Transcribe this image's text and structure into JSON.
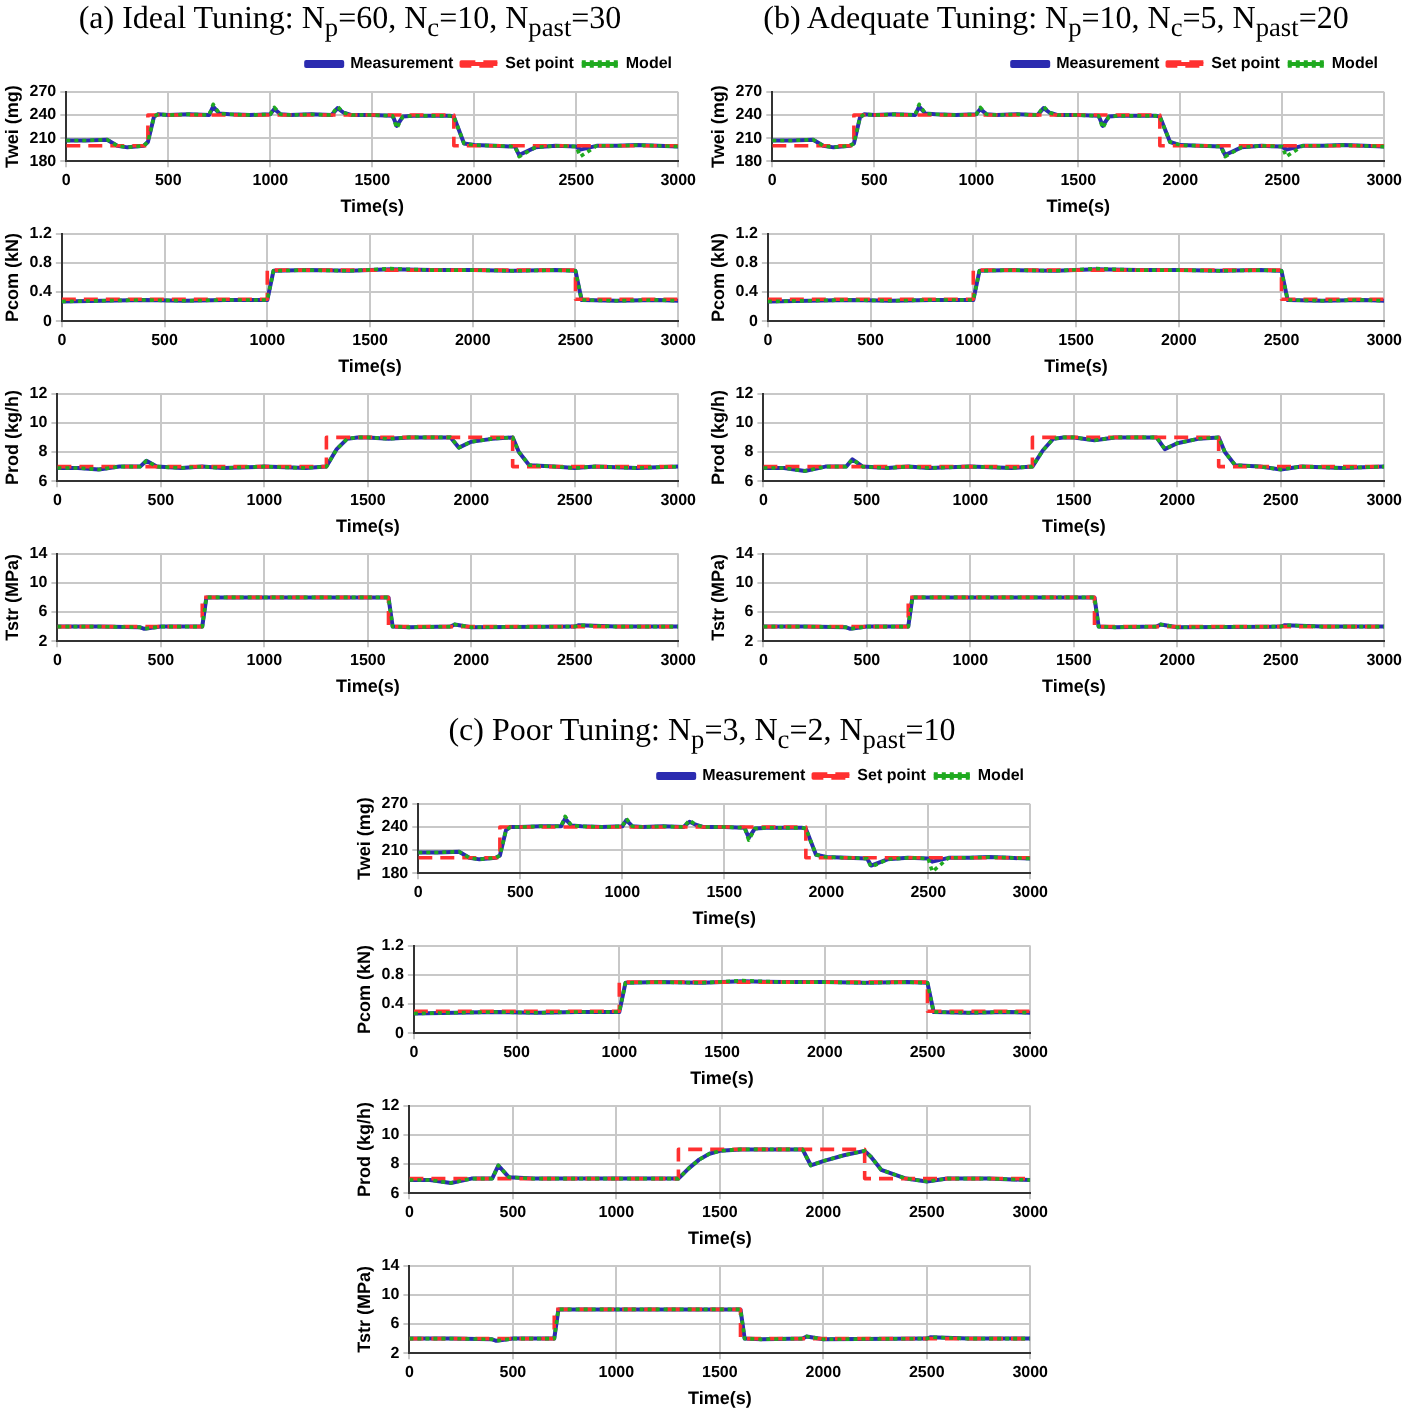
{
  "chart_data": [
    {
      "type": "line",
      "title": "(a) Ideal Tuning: N$_{p}$=60, N$_{c}$=10, N$_{past}$=30",
      "xlabel": "Time(s)",
      "ylabel": "Twei (mg)",
      "xlim": [
        0,
        3000
      ],
      "xticks": [
        0,
        500,
        1000,
        1500,
        2000,
        2500,
        3000
      ],
      "ylim": [
        180,
        270
      ],
      "yticks": [
        180,
        210,
        240,
        270
      ],
      "grid": true,
      "legend": "top right",
      "marker": "none",
      "series": [
        {
          "name": "Measurement",
          "color": "#2b2bb0",
          "line_style": "solid",
          "x": [
            0,
            100,
            200,
            250,
            300,
            380,
            400,
            430,
            450,
            500,
            600,
            700,
            720,
            750,
            800,
            900,
            1000,
            1020,
            1050,
            1100,
            1200,
            1300,
            1330,
            1360,
            1400,
            1500,
            1600,
            1620,
            1650,
            1700,
            1800,
            1880,
            1900,
            1950,
            2000,
            2100,
            2200,
            2220,
            2300,
            2400,
            2500,
            2520,
            2600,
            2700,
            2800,
            2900,
            3000
          ],
          "values": [
            207,
            207,
            208,
            200,
            198,
            200,
            205,
            238,
            241,
            240,
            241,
            240,
            251,
            242,
            241,
            240,
            241,
            248,
            241,
            240,
            241,
            240,
            249,
            243,
            240,
            240,
            239,
            226,
            238,
            239,
            239,
            239,
            238,
            203,
            201,
            200,
            199,
            188,
            198,
            200,
            199,
            195,
            200,
            200,
            201,
            200,
            199
          ]
        },
        {
          "name": "Set point",
          "color": "#ff3030",
          "line_style": "dashed",
          "x": [
            0,
            400,
            400,
            1900,
            1900,
            3000
          ],
          "values": [
            200,
            200,
            240,
            240,
            200,
            200
          ]
        },
        {
          "name": "Model",
          "color": "#1faa1f",
          "line_style": "dotted",
          "x": [
            0,
            100,
            200,
            250,
            300,
            380,
            400,
            430,
            450,
            500,
            600,
            700,
            720,
            750,
            800,
            900,
            1000,
            1020,
            1050,
            1100,
            1200,
            1300,
            1330,
            1360,
            1400,
            1500,
            1600,
            1620,
            1650,
            1700,
            1800,
            1880,
            1900,
            1950,
            2000,
            2100,
            2200,
            2220,
            2300,
            2400,
            2500,
            2520,
            2600,
            2700,
            2800,
            2900,
            3000
          ],
          "values": [
            207,
            207,
            208,
            200,
            198,
            200,
            205,
            238,
            241,
            240,
            241,
            240,
            254,
            242,
            241,
            240,
            241,
            250,
            241,
            240,
            241,
            240,
            251,
            243,
            240,
            240,
            239,
            223,
            238,
            239,
            239,
            239,
            238,
            203,
            201,
            200,
            199,
            186,
            198,
            200,
            199,
            186,
            200,
            200,
            201,
            200,
            199
          ]
        }
      ]
    },
    {
      "type": "line",
      "xlabel": "Time(s)",
      "ylabel": "Pcom (kN)",
      "xlim": [
        0,
        3000
      ],
      "xticks": [
        0,
        500,
        1000,
        1500,
        2000,
        2500,
        3000
      ],
      "ylim": [
        0,
        1.2
      ],
      "yticks": [
        0,
        0.4,
        0.8,
        1.2
      ],
      "grid": true,
      "marker": "none",
      "series": [
        {
          "color": "#2b2bb0",
          "line_style": "solid",
          "x": [
            0,
            200,
            400,
            600,
            800,
            1000,
            1030,
            1200,
            1400,
            1600,
            1800,
            2000,
            2200,
            2400,
            2500,
            2530,
            2700,
            2900,
            3000
          ],
          "values": [
            0.27,
            0.28,
            0.29,
            0.28,
            0.29,
            0.29,
            0.69,
            0.7,
            0.69,
            0.71,
            0.7,
            0.7,
            0.69,
            0.7,
            0.69,
            0.29,
            0.28,
            0.29,
            0.28
          ]
        },
        {
          "color": "#ff3030",
          "line_style": "dashed",
          "x": [
            0,
            1000,
            1000,
            2500,
            2500,
            3000
          ],
          "values": [
            0.3,
            0.3,
            0.7,
            0.7,
            0.3,
            0.3
          ]
        },
        {
          "color": "#1faa1f",
          "line_style": "dotted",
          "x": [
            0,
            200,
            400,
            600,
            800,
            1000,
            1030,
            1200,
            1400,
            1600,
            1800,
            2000,
            2200,
            2400,
            2500,
            2530,
            2700,
            2900,
            3000
          ],
          "values": [
            0.27,
            0.28,
            0.29,
            0.28,
            0.29,
            0.29,
            0.69,
            0.7,
            0.69,
            0.72,
            0.7,
            0.7,
            0.69,
            0.7,
            0.69,
            0.29,
            0.28,
            0.29,
            0.28
          ]
        }
      ]
    },
    {
      "type": "line",
      "xlabel": "Time(s)",
      "ylabel": "Prod (kg/h)",
      "xlim": [
        0,
        3000
      ],
      "xticks": [
        0,
        500,
        1000,
        1500,
        2000,
        2500,
        3000
      ],
      "ylim": [
        6,
        12
      ],
      "yticks": [
        6,
        8,
        10,
        12
      ],
      "grid": true,
      "marker": "none",
      "series": [
        {
          "color": "#2b2bb0",
          "line_style": "solid",
          "x": [
            0,
            100,
            200,
            300,
            400,
            430,
            480,
            600,
            700,
            800,
            1000,
            1200,
            1300,
            1350,
            1400,
            1450,
            1500,
            1600,
            1700,
            1800,
            1900,
            1940,
            2000,
            2100,
            2200,
            2230,
            2280,
            2400,
            2500,
            2600,
            2800,
            3000
          ],
          "values": [
            6.9,
            6.9,
            6.8,
            7.0,
            7.0,
            7.4,
            7.0,
            6.9,
            7.0,
            6.9,
            7.0,
            6.9,
            7.0,
            8.2,
            8.9,
            9.0,
            9.0,
            8.9,
            9.0,
            9.0,
            9.0,
            8.3,
            8.7,
            8.9,
            9.0,
            8.0,
            7.1,
            7.0,
            6.9,
            7.0,
            6.9,
            7.0
          ]
        },
        {
          "color": "#ff3030",
          "line_style": "dashed",
          "x": [
            0,
            1300,
            1300,
            2200,
            2200,
            3000
          ],
          "values": [
            7,
            7,
            9,
            9,
            7,
            7
          ]
        },
        {
          "color": "#1faa1f",
          "line_style": "dotted",
          "x": [
            0,
            100,
            200,
            300,
            400,
            430,
            480,
            600,
            700,
            800,
            1000,
            1200,
            1300,
            1350,
            1400,
            1450,
            1500,
            1600,
            1700,
            1800,
            1900,
            1940,
            2000,
            2100,
            2200,
            2230,
            2280,
            2400,
            2500,
            2600,
            2800,
            3000
          ],
          "values": [
            6.9,
            6.9,
            6.8,
            7.0,
            7.0,
            7.4,
            7.0,
            6.9,
            7.0,
            6.9,
            7.0,
            6.9,
            7.0,
            8.2,
            8.9,
            9.0,
            9.0,
            8.9,
            9.0,
            9.0,
            9.0,
            8.3,
            8.7,
            8.9,
            9.0,
            8.0,
            7.1,
            7.0,
            6.9,
            7.0,
            6.9,
            7.0
          ]
        }
      ]
    },
    {
      "type": "line",
      "xlabel": "Time(s)",
      "ylabel": "Tstr (MPa)",
      "xlim": [
        0,
        3000
      ],
      "xticks": [
        0,
        500,
        1000,
        1500,
        2000,
        2500,
        3000
      ],
      "ylim": [
        2,
        14
      ],
      "yticks": [
        2,
        6,
        10,
        14
      ],
      "grid": true,
      "marker": "none",
      "series": [
        {
          "color": "#2b2bb0",
          "line_style": "solid",
          "x": [
            0,
            200,
            400,
            420,
            500,
            700,
            720,
            800,
            1000,
            1200,
            1400,
            1600,
            1620,
            1700,
            1900,
            1920,
            2000,
            2500,
            2520,
            2700,
            3000
          ],
          "values": [
            4,
            4,
            3.9,
            3.7,
            4,
            4,
            8,
            8,
            8,
            8,
            8,
            8,
            4,
            3.9,
            4,
            4.3,
            3.9,
            4,
            4.2,
            4,
            4
          ]
        },
        {
          "color": "#ff3030",
          "line_style": "dashed",
          "x": [
            0,
            700,
            700,
            1600,
            1600,
            3000
          ],
          "values": [
            4,
            4,
            8,
            8,
            4,
            4
          ]
        },
        {
          "color": "#1faa1f",
          "line_style": "dotted",
          "x": [
            0,
            200,
            400,
            420,
            500,
            700,
            720,
            800,
            1000,
            1200,
            1400,
            1600,
            1620,
            1700,
            1900,
            1920,
            2000,
            2500,
            2520,
            2700,
            3000
          ],
          "values": [
            4,
            4,
            3.9,
            3.7,
            4,
            4,
            8,
            8,
            8,
            8,
            8,
            8,
            4,
            3.9,
            4,
            4.3,
            3.9,
            4,
            4.2,
            4,
            4
          ]
        }
      ]
    },
    {
      "type": "line",
      "title": "(b) Adequate Tuning: N$_{p}$=10, N$_{c}$=5, N$_{past}$=20",
      "xlabel": "Time(s)",
      "ylabel": "Twei (mg)",
      "xlim": [
        0,
        3000
      ],
      "xticks": [
        0,
        500,
        1000,
        1500,
        2000,
        2500,
        3000
      ],
      "ylim": [
        180,
        270
      ],
      "yticks": [
        180,
        210,
        240,
        270
      ],
      "grid": true,
      "legend": "top right",
      "marker": "none",
      "series": [
        {
          "name": "Measurement",
          "color": "#2b2bb0",
          "line_style": "solid",
          "x": [
            0,
            100,
            200,
            250,
            300,
            380,
            400,
            430,
            450,
            500,
            600,
            700,
            720,
            750,
            800,
            900,
            1000,
            1020,
            1050,
            1100,
            1200,
            1300,
            1330,
            1360,
            1400,
            1500,
            1600,
            1620,
            1650,
            1700,
            1800,
            1880,
            1900,
            1950,
            2000,
            2100,
            2200,
            2220,
            2300,
            2400,
            2500,
            2520,
            2600,
            2700,
            2800,
            2900,
            3000
          ],
          "values": [
            207,
            207,
            208,
            200,
            198,
            200,
            203,
            237,
            241,
            240,
            241,
            240,
            251,
            242,
            241,
            240,
            241,
            248,
            241,
            240,
            241,
            240,
            249,
            243,
            240,
            240,
            239,
            226,
            238,
            239,
            239,
            239,
            238,
            205,
            201,
            200,
            199,
            188,
            198,
            200,
            199,
            195,
            200,
            200,
            201,
            200,
            199
          ]
        },
        {
          "name": "Set point",
          "color": "#ff3030",
          "line_style": "dashed",
          "x": [
            0,
            400,
            400,
            1900,
            1900,
            3000
          ],
          "values": [
            200,
            200,
            240,
            240,
            200,
            200
          ]
        },
        {
          "name": "Model",
          "color": "#1faa1f",
          "line_style": "dotted",
          "x": [
            0,
            100,
            200,
            250,
            300,
            380,
            400,
            430,
            450,
            500,
            600,
            700,
            720,
            750,
            800,
            900,
            1000,
            1020,
            1050,
            1100,
            1200,
            1300,
            1330,
            1360,
            1400,
            1500,
            1600,
            1620,
            1650,
            1700,
            1800,
            1880,
            1900,
            1950,
            2000,
            2100,
            2200,
            2220,
            2300,
            2400,
            2500,
            2520,
            2600,
            2700,
            2800,
            2900,
            3000
          ],
          "values": [
            207,
            207,
            208,
            200,
            198,
            200,
            203,
            237,
            241,
            240,
            241,
            240,
            254,
            242,
            241,
            240,
            241,
            250,
            241,
            240,
            241,
            240,
            251,
            243,
            240,
            240,
            239,
            223,
            238,
            239,
            239,
            239,
            238,
            205,
            201,
            200,
            199,
            186,
            198,
            200,
            199,
            186,
            200,
            200,
            201,
            200,
            199
          ]
        }
      ]
    },
    {
      "type": "line",
      "xlabel": "Time(s)",
      "ylabel": "Pcom (kN)",
      "xlim": [
        0,
        3000
      ],
      "xticks": [
        0,
        500,
        1000,
        1500,
        2000,
        2500,
        3000
      ],
      "ylim": [
        0,
        1.2
      ],
      "yticks": [
        0,
        0.4,
        0.8,
        1.2
      ],
      "grid": true,
      "marker": "none",
      "series": [
        {
          "color": "#2b2bb0",
          "line_style": "solid",
          "x": [
            0,
            200,
            400,
            600,
            800,
            1000,
            1030,
            1200,
            1400,
            1600,
            1800,
            2000,
            2200,
            2400,
            2500,
            2530,
            2700,
            2900,
            3000
          ],
          "values": [
            0.27,
            0.28,
            0.29,
            0.28,
            0.29,
            0.29,
            0.69,
            0.7,
            0.69,
            0.71,
            0.7,
            0.7,
            0.69,
            0.7,
            0.69,
            0.29,
            0.28,
            0.29,
            0.28
          ]
        },
        {
          "color": "#ff3030",
          "line_style": "dashed",
          "x": [
            0,
            1000,
            1000,
            2500,
            2500,
            3000
          ],
          "values": [
            0.3,
            0.3,
            0.7,
            0.7,
            0.3,
            0.3
          ]
        },
        {
          "color": "#1faa1f",
          "line_style": "dotted",
          "x": [
            0,
            200,
            400,
            600,
            800,
            1000,
            1030,
            1200,
            1400,
            1600,
            1800,
            2000,
            2200,
            2400,
            2500,
            2530,
            2700,
            2900,
            3000
          ],
          "values": [
            0.27,
            0.28,
            0.29,
            0.28,
            0.29,
            0.29,
            0.69,
            0.7,
            0.69,
            0.72,
            0.7,
            0.7,
            0.69,
            0.7,
            0.69,
            0.29,
            0.28,
            0.29,
            0.28
          ]
        }
      ]
    },
    {
      "type": "line",
      "xlabel": "Time(s)",
      "ylabel": "Prod (kg/h)",
      "xlim": [
        0,
        3000
      ],
      "xticks": [
        0,
        500,
        1000,
        1500,
        2000,
        2500,
        3000
      ],
      "ylim": [
        6,
        12
      ],
      "yticks": [
        6,
        8,
        10,
        12
      ],
      "grid": true,
      "marker": "none",
      "series": [
        {
          "color": "#2b2bb0",
          "line_style": "solid",
          "x": [
            0,
            100,
            200,
            300,
            400,
            430,
            480,
            600,
            700,
            800,
            1000,
            1200,
            1300,
            1350,
            1400,
            1450,
            1500,
            1600,
            1700,
            1800,
            1900,
            1940,
            2000,
            2100,
            2200,
            2230,
            2280,
            2400,
            2500,
            2600,
            2800,
            3000
          ],
          "values": [
            6.9,
            6.9,
            6.7,
            7.0,
            7.0,
            7.5,
            7.0,
            6.9,
            7.0,
            6.9,
            7.0,
            6.9,
            7.0,
            8.1,
            8.9,
            9.0,
            9.0,
            8.8,
            9.0,
            9.0,
            9.0,
            8.2,
            8.6,
            8.9,
            9.0,
            8.0,
            7.1,
            7.0,
            6.8,
            7.0,
            6.9,
            7.0
          ]
        },
        {
          "color": "#ff3030",
          "line_style": "dashed",
          "x": [
            0,
            1300,
            1300,
            2200,
            2200,
            3000
          ],
          "values": [
            7,
            7,
            9,
            9,
            7,
            7
          ]
        },
        {
          "color": "#1faa1f",
          "line_style": "dotted",
          "x": [
            0,
            100,
            200,
            300,
            400,
            430,
            480,
            600,
            700,
            800,
            1000,
            1200,
            1300,
            1350,
            1400,
            1450,
            1500,
            1600,
            1700,
            1800,
            1900,
            1940,
            2000,
            2100,
            2200,
            2230,
            2280,
            2400,
            2500,
            2600,
            2800,
            3000
          ],
          "values": [
            6.9,
            6.9,
            6.7,
            7.0,
            7.0,
            7.5,
            7.0,
            6.9,
            7.0,
            6.9,
            7.0,
            6.9,
            7.0,
            8.1,
            8.9,
            9.0,
            9.0,
            8.8,
            9.0,
            9.0,
            9.0,
            8.2,
            8.6,
            8.9,
            9.0,
            8.0,
            7.1,
            7.0,
            6.8,
            7.0,
            6.9,
            7.0
          ]
        }
      ]
    },
    {
      "type": "line",
      "xlabel": "Time(s)",
      "ylabel": "Tstr (MPa)",
      "xlim": [
        0,
        3000
      ],
      "xticks": [
        0,
        500,
        1000,
        1500,
        2000,
        2500,
        3000
      ],
      "ylim": [
        2,
        14
      ],
      "yticks": [
        2,
        6,
        10,
        14
      ],
      "grid": true,
      "marker": "none",
      "series": [
        {
          "color": "#2b2bb0",
          "line_style": "solid",
          "x": [
            0,
            200,
            400,
            420,
            500,
            700,
            720,
            800,
            1000,
            1200,
            1400,
            1600,
            1620,
            1700,
            1900,
            1920,
            2000,
            2500,
            2520,
            2700,
            3000
          ],
          "values": [
            4,
            4,
            3.9,
            3.7,
            4,
            4,
            8,
            8,
            8,
            8,
            8,
            8,
            4,
            3.9,
            4,
            4.3,
            3.9,
            4,
            4.2,
            4,
            4
          ]
        },
        {
          "color": "#ff3030",
          "line_style": "dashed",
          "x": [
            0,
            700,
            700,
            1600,
            1600,
            3000
          ],
          "values": [
            4,
            4,
            8,
            8,
            4,
            4
          ]
        },
        {
          "color": "#1faa1f",
          "line_style": "dotted",
          "x": [
            0,
            200,
            400,
            420,
            500,
            700,
            720,
            800,
            1000,
            1200,
            1400,
            1600,
            1620,
            1700,
            1900,
            1920,
            2000,
            2500,
            2520,
            2700,
            3000
          ],
          "values": [
            4,
            4,
            3.9,
            3.7,
            4,
            4,
            8,
            8,
            8,
            8,
            8,
            8,
            4,
            3.9,
            4,
            4.3,
            3.9,
            4,
            4.2,
            4,
            4
          ]
        }
      ]
    },
    {
      "type": "line",
      "title": "(c) Poor Tuning: N$_{p}$=3, N$_{c}$=2, N$_{past}$=10",
      "xlabel": "Time(s)",
      "ylabel": "Twei (mg)",
      "xlim": [
        0,
        3000
      ],
      "xticks": [
        0,
        500,
        1000,
        1500,
        2000,
        2500,
        3000
      ],
      "ylim": [
        180,
        270
      ],
      "yticks": [
        180,
        210,
        240,
        270
      ],
      "grid": true,
      "legend": "top right",
      "marker": "none",
      "series": [
        {
          "name": "Measurement",
          "color": "#2b2bb0",
          "line_style": "solid",
          "x": [
            0,
            100,
            200,
            250,
            300,
            380,
            400,
            430,
            450,
            500,
            600,
            700,
            720,
            750,
            800,
            900,
            1000,
            1020,
            1050,
            1100,
            1200,
            1300,
            1330,
            1360,
            1400,
            1500,
            1600,
            1620,
            1650,
            1700,
            1800,
            1880,
            1900,
            1950,
            2000,
            2100,
            2200,
            2220,
            2300,
            2400,
            2500,
            2520,
            2600,
            2700,
            2800,
            2900,
            3000
          ],
          "values": [
            207,
            207,
            208,
            200,
            198,
            200,
            203,
            236,
            240,
            240,
            241,
            241,
            251,
            242,
            241,
            240,
            241,
            249,
            241,
            240,
            241,
            240,
            247,
            243,
            240,
            240,
            239,
            226,
            238,
            239,
            239,
            239,
            238,
            204,
            201,
            200,
            199,
            190,
            198,
            200,
            199,
            195,
            200,
            200,
            201,
            200,
            199
          ]
        },
        {
          "name": "Set point",
          "color": "#ff3030",
          "line_style": "dashed",
          "x": [
            0,
            400,
            400,
            1900,
            1900,
            3000
          ],
          "values": [
            200,
            200,
            240,
            240,
            200,
            200
          ]
        },
        {
          "name": "Model",
          "color": "#1faa1f",
          "line_style": "dotted",
          "x": [
            0,
            100,
            200,
            250,
            300,
            380,
            400,
            430,
            450,
            500,
            600,
            700,
            720,
            750,
            800,
            900,
            1000,
            1020,
            1050,
            1100,
            1200,
            1300,
            1330,
            1360,
            1400,
            1500,
            1600,
            1620,
            1650,
            1700,
            1800,
            1880,
            1900,
            1950,
            2000,
            2100,
            2200,
            2220,
            2300,
            2400,
            2500,
            2520,
            2600,
            2700,
            2800,
            2900,
            3000
          ],
          "values": [
            207,
            207,
            208,
            200,
            198,
            200,
            203,
            236,
            240,
            240,
            241,
            241,
            254,
            242,
            241,
            240,
            241,
            251,
            241,
            240,
            241,
            240,
            249,
            243,
            240,
            240,
            239,
            223,
            238,
            239,
            239,
            239,
            238,
            204,
            201,
            200,
            199,
            188,
            198,
            200,
            199,
            182,
            200,
            200,
            201,
            200,
            199
          ]
        }
      ]
    },
    {
      "type": "line",
      "xlabel": "Time(s)",
      "ylabel": "Pcom (kN)",
      "xlim": [
        0,
        3000
      ],
      "xticks": [
        0,
        500,
        1000,
        1500,
        2000,
        2500,
        3000
      ],
      "ylim": [
        0,
        1.2
      ],
      "yticks": [
        0,
        0.4,
        0.8,
        1.2
      ],
      "grid": true,
      "marker": "none",
      "series": [
        {
          "color": "#2b2bb0",
          "line_style": "solid",
          "x": [
            0,
            200,
            400,
            600,
            800,
            1000,
            1030,
            1200,
            1400,
            1600,
            1800,
            2000,
            2200,
            2400,
            2500,
            2530,
            2700,
            2900,
            3000
          ],
          "values": [
            0.27,
            0.28,
            0.29,
            0.28,
            0.29,
            0.29,
            0.69,
            0.7,
            0.69,
            0.71,
            0.7,
            0.7,
            0.69,
            0.7,
            0.69,
            0.29,
            0.28,
            0.29,
            0.28
          ]
        },
        {
          "color": "#ff3030",
          "line_style": "dashed",
          "x": [
            0,
            1000,
            1000,
            2500,
            2500,
            3000
          ],
          "values": [
            0.3,
            0.3,
            0.7,
            0.7,
            0.3,
            0.3
          ]
        },
        {
          "color": "#1faa1f",
          "line_style": "dotted",
          "x": [
            0,
            200,
            400,
            600,
            800,
            1000,
            1030,
            1200,
            1400,
            1600,
            1800,
            2000,
            2200,
            2400,
            2500,
            2530,
            2700,
            2900,
            3000
          ],
          "values": [
            0.27,
            0.28,
            0.29,
            0.28,
            0.29,
            0.29,
            0.69,
            0.7,
            0.69,
            0.72,
            0.7,
            0.7,
            0.69,
            0.7,
            0.69,
            0.29,
            0.28,
            0.29,
            0.28
          ]
        }
      ]
    },
    {
      "type": "line",
      "xlabel": "Time(s)",
      "ylabel": "Prod (kg/h)",
      "xlim": [
        0,
        3000
      ],
      "xticks": [
        0,
        500,
        1000,
        1500,
        2000,
        2500,
        3000
      ],
      "ylim": [
        6,
        12
      ],
      "yticks": [
        6,
        8,
        10,
        12
      ],
      "grid": true,
      "marker": "none",
      "series": [
        {
          "color": "#2b2bb0",
          "line_style": "solid",
          "x": [
            0,
            100,
            200,
            300,
            400,
            430,
            480,
            600,
            700,
            800,
            1000,
            1200,
            1300,
            1350,
            1400,
            1450,
            1500,
            1600,
            1700,
            1800,
            1900,
            1940,
            2000,
            2100,
            2200,
            2230,
            2280,
            2400,
            2500,
            2600,
            2800,
            3000
          ],
          "values": [
            6.9,
            6.9,
            6.7,
            7.0,
            7.0,
            7.9,
            7.1,
            7.0,
            7.0,
            7.0,
            7.0,
            7.0,
            7.0,
            7.7,
            8.3,
            8.7,
            8.9,
            9.0,
            9.0,
            9.0,
            9.0,
            7.9,
            8.2,
            8.6,
            8.9,
            8.5,
            7.6,
            7.0,
            6.8,
            7.0,
            7.0,
            6.9
          ]
        },
        {
          "color": "#ff3030",
          "line_style": "dashed",
          "x": [
            0,
            1300,
            1300,
            2200,
            2200,
            3000
          ],
          "values": [
            7,
            7,
            9,
            9,
            7,
            7
          ]
        },
        {
          "color": "#1faa1f",
          "line_style": "dotted",
          "x": [
            0,
            100,
            200,
            300,
            400,
            430,
            480,
            600,
            700,
            800,
            1000,
            1200,
            1300,
            1350,
            1400,
            1450,
            1500,
            1600,
            1700,
            1800,
            1900,
            1940,
            2000,
            2100,
            2200,
            2230,
            2280,
            2400,
            2500,
            2600,
            2800,
            3000
          ],
          "values": [
            6.9,
            6.9,
            6.7,
            7.0,
            7.0,
            7.9,
            7.1,
            7.0,
            7.0,
            7.0,
            7.0,
            7.0,
            7.0,
            7.7,
            8.3,
            8.7,
            8.9,
            9.0,
            9.0,
            9.0,
            9.0,
            7.9,
            8.2,
            8.6,
            8.9,
            8.5,
            7.6,
            7.0,
            6.8,
            7.0,
            7.0,
            6.9
          ]
        }
      ]
    },
    {
      "type": "line",
      "xlabel": "Time(s)",
      "ylabel": "Tstr (MPa)",
      "xlim": [
        0,
        3000
      ],
      "xticks": [
        0,
        500,
        1000,
        1500,
        2000,
        2500,
        3000
      ],
      "ylim": [
        2,
        14
      ],
      "yticks": [
        2,
        6,
        10,
        14
      ],
      "grid": true,
      "marker": "none",
      "series": [
        {
          "color": "#2b2bb0",
          "line_style": "solid",
          "x": [
            0,
            200,
            400,
            420,
            500,
            700,
            720,
            800,
            1000,
            1200,
            1400,
            1600,
            1620,
            1700,
            1900,
            1920,
            2000,
            2500,
            2520,
            2700,
            3000
          ],
          "values": [
            4,
            4,
            3.9,
            3.7,
            4,
            4,
            8,
            8,
            8,
            8,
            8,
            8,
            4,
            3.9,
            4,
            4.3,
            3.9,
            4,
            4.2,
            4,
            4
          ]
        },
        {
          "color": "#ff3030",
          "line_style": "dashed",
          "x": [
            0,
            700,
            700,
            1600,
            1600,
            3000
          ],
          "values": [
            4,
            4,
            8,
            8,
            4,
            4
          ]
        },
        {
          "color": "#1faa1f",
          "line_style": "dotted",
          "x": [
            0,
            200,
            400,
            420,
            500,
            700,
            720,
            800,
            1000,
            1200,
            1400,
            1600,
            1620,
            1700,
            1900,
            1920,
            2000,
            2500,
            2520,
            2700,
            3000
          ],
          "values": [
            4,
            4,
            3.9,
            3.7,
            4,
            4,
            8,
            8,
            8,
            8,
            8,
            8,
            4,
            3.9,
            4,
            4.3,
            3.9,
            4,
            4.2,
            4,
            4
          ]
        }
      ]
    }
  ]
}
